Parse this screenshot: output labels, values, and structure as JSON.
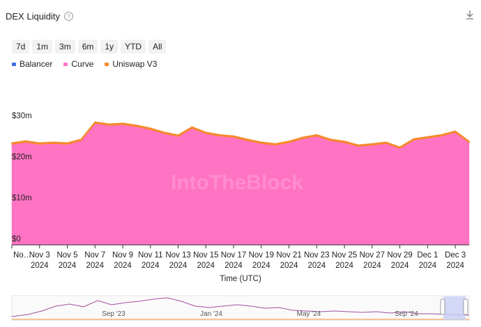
{
  "header": {
    "title": "DEX Liquidity",
    "help": "?"
  },
  "range_buttons": [
    "7d",
    "1m",
    "3m",
    "6m",
    "1y",
    "YTD",
    "All"
  ],
  "chart_data": {
    "type": "area",
    "stacked": true,
    "legend": "top-left",
    "grid": false,
    "xlabel": "Time (UTC)",
    "watermark": "IntoTheBlock",
    "x": [
      "2024-11-01",
      "2024-11-02",
      "2024-11-03",
      "2024-11-04",
      "2024-11-05",
      "2024-11-06",
      "2024-11-07",
      "2024-11-08",
      "2024-11-09",
      "2024-11-10",
      "2024-11-11",
      "2024-11-12",
      "2024-11-13",
      "2024-11-14",
      "2024-11-15",
      "2024-11-16",
      "2024-11-17",
      "2024-11-18",
      "2024-11-19",
      "2024-11-20",
      "2024-11-21",
      "2024-11-22",
      "2024-11-23",
      "2024-11-24",
      "2024-11-25",
      "2024-11-26",
      "2024-11-27",
      "2024-11-28",
      "2024-11-29",
      "2024-11-30",
      "2024-12-01",
      "2024-12-02",
      "2024-12-03",
      "2024-12-04"
    ],
    "xticks": [
      {
        "value": "2024-11-01",
        "label": "No…"
      },
      {
        "value": "2024-11-03",
        "label": "Nov 3",
        "year": "2024"
      },
      {
        "value": "2024-11-05",
        "label": "Nov 5",
        "year": "2024"
      },
      {
        "value": "2024-11-07",
        "label": "Nov 7",
        "year": "2024"
      },
      {
        "value": "2024-11-09",
        "label": "Nov 9",
        "year": "2024"
      },
      {
        "value": "2024-11-11",
        "label": "Nov 11",
        "year": "2024"
      },
      {
        "value": "2024-11-13",
        "label": "Nov 13",
        "year": "2024"
      },
      {
        "value": "2024-11-15",
        "label": "Nov 15",
        "year": "2024"
      },
      {
        "value": "2024-11-17",
        "label": "Nov 17",
        "year": "2024"
      },
      {
        "value": "2024-11-19",
        "label": "Nov 19",
        "year": "2024"
      },
      {
        "value": "2024-11-21",
        "label": "Nov 21",
        "year": "2024"
      },
      {
        "value": "2024-11-23",
        "label": "Nov 23",
        "year": "2024"
      },
      {
        "value": "2024-11-25",
        "label": "Nov 25",
        "year": "2024"
      },
      {
        "value": "2024-11-27",
        "label": "Nov 27",
        "year": "2024"
      },
      {
        "value": "2024-11-29",
        "label": "Nov 29",
        "year": "2024"
      },
      {
        "value": "2024-12-01",
        "label": "Dec 1",
        "year": "2024"
      },
      {
        "value": "2024-12-03",
        "label": "Dec 3",
        "year": "2024"
      }
    ],
    "ylim": [
      0,
      30
    ],
    "yticks": [
      {
        "value": 0,
        "label": "$0"
      },
      {
        "value": 10,
        "label": "$10m"
      },
      {
        "value": 20,
        "label": "$20m"
      },
      {
        "value": 30,
        "label": "$30m"
      }
    ],
    "series": [
      {
        "name": "Balancer",
        "color": "#3d6fe6",
        "values": [
          0.05,
          0.05,
          0.05,
          0.05,
          0.05,
          0.05,
          0.05,
          0.05,
          0.05,
          0.05,
          0.05,
          0.05,
          0.05,
          0.05,
          0.05,
          0.05,
          0.05,
          0.05,
          0.05,
          0.05,
          0.05,
          0.05,
          0.05,
          0.05,
          0.05,
          0.05,
          0.05,
          0.05,
          0.05,
          0.05,
          0.05,
          0.05,
          0.05,
          0.05
        ]
      },
      {
        "name": "Curve",
        "color": "#ff73c3",
        "values": [
          24.5,
          25.0,
          24.5,
          24.7,
          24.5,
          25.4,
          29.6,
          29.1,
          29.3,
          28.8,
          28.1,
          27.1,
          26.4,
          28.4,
          27.1,
          26.5,
          26.2,
          25.4,
          24.7,
          24.3,
          24.9,
          25.9,
          26.5,
          25.4,
          24.9,
          24.0,
          24.3,
          24.7,
          23.5,
          25.5,
          26.0,
          26.5,
          27.4,
          24.9
        ]
      },
      {
        "name": "Uniswap V3",
        "color": "#f5892c",
        "values": [
          0.3,
          0.3,
          0.3,
          0.3,
          0.3,
          0.3,
          0.3,
          0.3,
          0.3,
          0.3,
          0.3,
          0.3,
          0.3,
          0.3,
          0.3,
          0.3,
          0.3,
          0.3,
          0.3,
          0.3,
          0.3,
          0.3,
          0.3,
          0.3,
          0.3,
          0.3,
          0.3,
          0.3,
          0.3,
          0.3,
          0.3,
          0.3,
          0.3,
          0.3
        ]
      }
    ]
  },
  "navigator": {
    "labels": [
      "Sep '23",
      "Jan '24",
      "May '24",
      "Sep '24"
    ]
  }
}
